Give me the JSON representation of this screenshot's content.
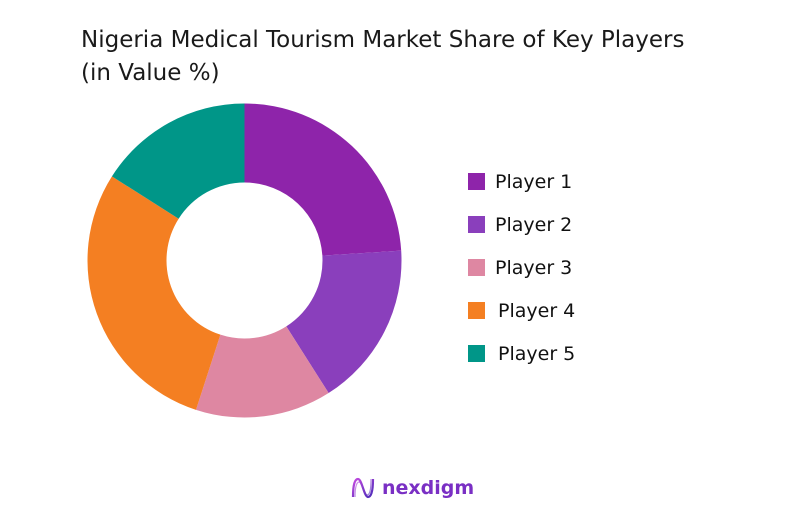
{
  "title_line1": "Nigeria Medical Tourism Market Share of Key Players",
  "title_line2": "(in Value %)",
  "brand": {
    "name": "nexdigm",
    "color": "#7a2fc4"
  },
  "chart_data": {
    "type": "pie",
    "subtype": "donut",
    "title": "Nigeria Medical Tourism Market Share of Key Players (in Value %)",
    "categories": [
      "Player 1",
      "Player 2",
      "Player 3",
      "Player 4",
      "Player 5"
    ],
    "values": [
      24,
      17,
      14,
      29,
      16
    ],
    "colors": [
      "#8e24aa",
      "#8a3fbc",
      "#de87a2",
      "#f47f22",
      "#009688"
    ],
    "start_angle_deg": 0,
    "direction": "clockwise",
    "legend_position": "right",
    "data_labels": false
  }
}
